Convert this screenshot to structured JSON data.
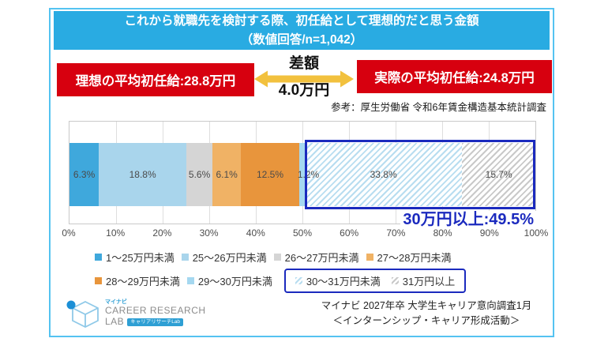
{
  "header": {
    "line1": "これから就職先を検討する際、初任給として理想的だと思う金額",
    "line2": "（数値回答/n=1,042）"
  },
  "comparison": {
    "ideal": "理想の平均初任給:28.8万円",
    "actual": "実際の平均初任給:24.8万円",
    "diff_label": "差額",
    "diff_value": "4.0万円",
    "reference": "参考：厚生労働省 令和6年賃金構造基本統計調査"
  },
  "colors": {
    "frame": "#54C3F1",
    "title_bar": "#29ABE2",
    "red_box": "#D7000F",
    "arrow": "#F2C13E",
    "accent_blue": "#1B2ABE"
  },
  "chart_data": {
    "type": "bar",
    "stacked": true,
    "orientation": "horizontal",
    "unit": "percent",
    "categories": [
      "1～25万円未満",
      "25～26万円未満",
      "26～27万円未満",
      "27～28万円未満",
      "28～29万円未満",
      "29～30万円未満",
      "30～31万円未満",
      "31万円以上"
    ],
    "values": [
      6.3,
      18.8,
      5.6,
      6.1,
      12.5,
      1.2,
      33.8,
      15.7
    ],
    "labels": [
      "6.3%",
      "18.8%",
      "5.6%",
      "6.1%",
      "12.5%",
      "1.2%",
      "33.8%",
      "15.7%"
    ],
    "styles": [
      {
        "type": "solid",
        "color": "#3FA8DC"
      },
      {
        "type": "solid",
        "color": "#A9D5EC"
      },
      {
        "type": "solid",
        "color": "#D5D5D5"
      },
      {
        "type": "solid",
        "color": "#F0B265"
      },
      {
        "type": "solid",
        "color": "#E8953C"
      },
      {
        "type": "solid",
        "color": "#A5D8F0"
      },
      {
        "type": "hatch",
        "color": "#B8DDF0"
      },
      {
        "type": "hatch",
        "color": "#C9C9C9"
      }
    ],
    "axis_ticks": [
      "0%",
      "10%",
      "20%",
      "30%",
      "40%",
      "50%",
      "60%",
      "70%",
      "80%",
      "90%",
      "100%"
    ],
    "xlim": [
      0,
      100
    ],
    "grid": true,
    "highlight": {
      "label": "30万円以上:49.5%",
      "from": 50.5,
      "to": 100
    },
    "legend": {
      "rows": [
        [
          0,
          1,
          2,
          3
        ],
        [
          4,
          5
        ]
      ],
      "boxed": [
        6,
        7
      ],
      "position": "bottom"
    }
  },
  "footer": {
    "logo": {
      "brand_small": "マイナビ",
      "line1": "CAREER RESEARCH",
      "line2": "LAB",
      "badge": "キャリアリサーチLab"
    },
    "survey_line1": "マイナビ 2027年卒 大学生キャリア意向調査1月",
    "survey_line2": "＜インターンシップ・キャリア形成活動＞"
  }
}
